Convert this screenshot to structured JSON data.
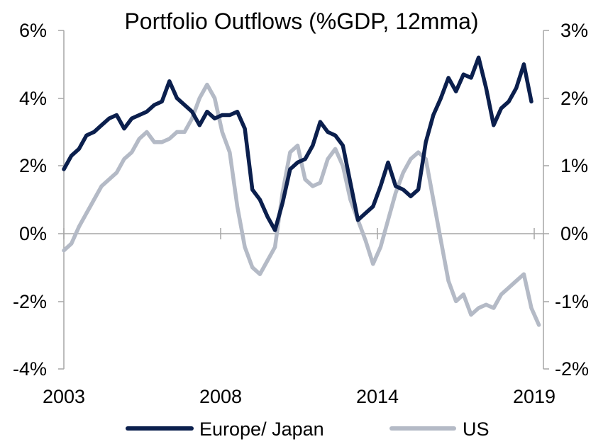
{
  "chart_data": {
    "type": "line",
    "title": "Portfolio Outflows (%GDP, 12mma)",
    "x_ticks": [
      "2003",
      "2008",
      "2014",
      "2019"
    ],
    "xlim": [
      2003.0,
      2018.9
    ],
    "y_left": {
      "ticks": [
        "6%",
        "4%",
        "2%",
        "0%",
        "-2%",
        "-4%"
      ],
      "ylim": [
        -4,
        6
      ]
    },
    "y_right": {
      "ticks": [
        "3%",
        "2%",
        "1%",
        "0%",
        "-1%",
        "-2%"
      ],
      "ylim": [
        -2,
        3
      ]
    },
    "legend": {
      "placement": "bottom"
    },
    "grid": false,
    "series": [
      {
        "name": "Europe/ Japan",
        "axis": "left",
        "color": "#0b1f4d",
        "points": [
          [
            2003.0,
            1.9
          ],
          [
            2003.25,
            2.3
          ],
          [
            2003.5,
            2.5
          ],
          [
            2003.75,
            2.9
          ],
          [
            2004.0,
            3.0
          ],
          [
            2004.25,
            3.2
          ],
          [
            2004.5,
            3.4
          ],
          [
            2004.75,
            3.5
          ],
          [
            2005.0,
            3.1
          ],
          [
            2005.25,
            3.4
          ],
          [
            2005.5,
            3.5
          ],
          [
            2005.75,
            3.6
          ],
          [
            2006.0,
            3.8
          ],
          [
            2006.25,
            3.9
          ],
          [
            2006.5,
            4.5
          ],
          [
            2006.75,
            4.0
          ],
          [
            2007.0,
            3.8
          ],
          [
            2007.25,
            3.6
          ],
          [
            2007.5,
            3.2
          ],
          [
            2007.75,
            3.6
          ],
          [
            2008.0,
            3.4
          ],
          [
            2008.25,
            3.5
          ],
          [
            2008.5,
            3.5
          ],
          [
            2008.75,
            3.6
          ],
          [
            2009.0,
            3.1
          ],
          [
            2009.25,
            1.3
          ],
          [
            2009.5,
            1.0
          ],
          [
            2009.75,
            0.5
          ],
          [
            2010.0,
            0.1
          ],
          [
            2010.25,
            0.9
          ],
          [
            2010.5,
            1.9
          ],
          [
            2010.75,
            2.1
          ],
          [
            2011.0,
            2.2
          ],
          [
            2011.25,
            2.6
          ],
          [
            2011.5,
            3.3
          ],
          [
            2011.75,
            3.0
          ],
          [
            2012.0,
            2.9
          ],
          [
            2012.25,
            2.6
          ],
          [
            2012.5,
            1.5
          ],
          [
            2012.75,
            0.4
          ],
          [
            2013.0,
            0.6
          ],
          [
            2013.25,
            0.8
          ],
          [
            2013.5,
            1.4
          ],
          [
            2013.75,
            2.1
          ],
          [
            2014.0,
            1.4
          ],
          [
            2014.25,
            1.3
          ],
          [
            2014.5,
            1.1
          ],
          [
            2014.75,
            1.3
          ],
          [
            2015.0,
            2.7
          ],
          [
            2015.25,
            3.5
          ],
          [
            2015.5,
            4.0
          ],
          [
            2015.75,
            4.6
          ],
          [
            2016.0,
            4.2
          ],
          [
            2016.25,
            4.7
          ],
          [
            2016.5,
            4.6
          ],
          [
            2016.75,
            5.2
          ],
          [
            2017.0,
            4.3
          ],
          [
            2017.25,
            3.2
          ],
          [
            2017.5,
            3.7
          ],
          [
            2017.75,
            3.9
          ],
          [
            2018.0,
            4.3
          ],
          [
            2018.25,
            5.0
          ],
          [
            2018.5,
            3.9
          ]
        ]
      },
      {
        "name": "US",
        "axis": "right",
        "color": "#b4bac6",
        "points": [
          [
            2003.0,
            -0.25
          ],
          [
            2003.25,
            -0.15
          ],
          [
            2003.5,
            0.1
          ],
          [
            2003.75,
            0.3
          ],
          [
            2004.0,
            0.5
          ],
          [
            2004.25,
            0.7
          ],
          [
            2004.5,
            0.8
          ],
          [
            2004.75,
            0.9
          ],
          [
            2005.0,
            1.1
          ],
          [
            2005.25,
            1.2
          ],
          [
            2005.5,
            1.4
          ],
          [
            2005.75,
            1.5
          ],
          [
            2006.0,
            1.35
          ],
          [
            2006.25,
            1.35
          ],
          [
            2006.5,
            1.4
          ],
          [
            2006.75,
            1.5
          ],
          [
            2007.0,
            1.5
          ],
          [
            2007.25,
            1.7
          ],
          [
            2007.5,
            2.0
          ],
          [
            2007.75,
            2.2
          ],
          [
            2008.0,
            2.0
          ],
          [
            2008.25,
            1.5
          ],
          [
            2008.5,
            1.2
          ],
          [
            2008.75,
            0.4
          ],
          [
            2009.0,
            -0.2
          ],
          [
            2009.25,
            -0.5
          ],
          [
            2009.5,
            -0.6
          ],
          [
            2009.75,
            -0.4
          ],
          [
            2010.0,
            -0.2
          ],
          [
            2010.25,
            0.6
          ],
          [
            2010.5,
            1.2
          ],
          [
            2010.75,
            1.3
          ],
          [
            2011.0,
            0.8
          ],
          [
            2011.25,
            0.7
          ],
          [
            2011.5,
            0.75
          ],
          [
            2011.75,
            1.1
          ],
          [
            2012.0,
            1.25
          ],
          [
            2012.25,
            1.0
          ],
          [
            2012.5,
            0.5
          ],
          [
            2012.75,
            0.2
          ],
          [
            2013.0,
            -0.1
          ],
          [
            2013.25,
            -0.45
          ],
          [
            2013.5,
            -0.2
          ],
          [
            2013.75,
            0.2
          ],
          [
            2014.0,
            0.6
          ],
          [
            2014.25,
            0.9
          ],
          [
            2014.5,
            1.1
          ],
          [
            2014.75,
            1.2
          ],
          [
            2015.0,
            1.1
          ],
          [
            2015.25,
            0.5
          ],
          [
            2015.5,
            -0.1
          ],
          [
            2015.75,
            -0.7
          ],
          [
            2016.0,
            -1.0
          ],
          [
            2016.25,
            -0.9
          ],
          [
            2016.5,
            -1.2
          ],
          [
            2016.75,
            -1.1
          ],
          [
            2017.0,
            -1.05
          ],
          [
            2017.25,
            -1.1
          ],
          [
            2017.5,
            -0.9
          ],
          [
            2017.75,
            -0.8
          ],
          [
            2018.0,
            -0.7
          ],
          [
            2018.25,
            -0.6
          ],
          [
            2018.5,
            -1.1
          ],
          [
            2018.75,
            -1.35
          ]
        ]
      }
    ]
  }
}
